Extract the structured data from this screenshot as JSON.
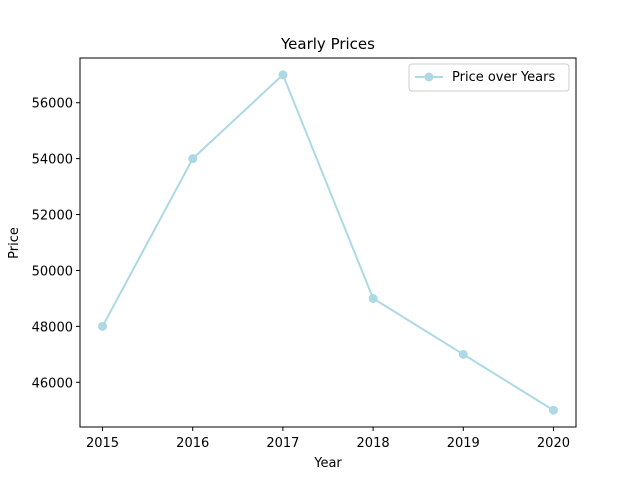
{
  "chart_data": {
    "type": "line",
    "title": "Yearly Prices",
    "xlabel": "Year",
    "ylabel": "Price",
    "x": [
      2015,
      2016,
      2017,
      2018,
      2019,
      2020
    ],
    "xticks": [
      "2015",
      "2016",
      "2017",
      "2018",
      "2019",
      "2020"
    ],
    "yticks": [
      46000,
      48000,
      50000,
      52000,
      54000,
      56000
    ],
    "ytick_labels": [
      "46000",
      "48000",
      "50000",
      "52000",
      "54000",
      "56000"
    ],
    "xlim": [
      2014.75,
      2020.25
    ],
    "ylim": [
      44400,
      57600
    ],
    "series": [
      {
        "name": "Price over Years",
        "color": "#add8e6",
        "marker": "circle",
        "values": [
          48000,
          54000,
          57000,
          49000,
          47000,
          45000
        ]
      }
    ],
    "legend": {
      "position": "top-right"
    },
    "grid": false
  }
}
